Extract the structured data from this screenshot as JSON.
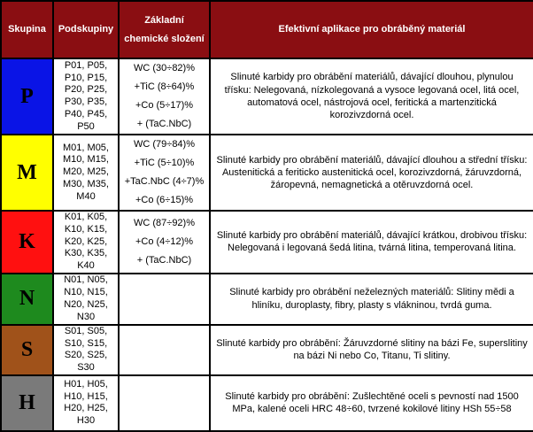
{
  "headers": {
    "group": "Skupina",
    "subgroup": "Podskupiny",
    "chem": "Základní chemické složení",
    "app": "Efektivní aplikace pro obráběný materiál"
  },
  "rows": [
    {
      "group": "P",
      "color": "#0a14e6",
      "text_color": "#000000",
      "subgroups": "P01, P05, P10, P15, P20, P25, P30, P35, P40, P45, P50",
      "chem": [
        "WC (30÷82)%",
        "+TiC (8÷64)%",
        "+Co (5÷17)%",
        "+ (TaC.NbC)"
      ],
      "app": "Slinuté karbidy pro obrábění materiálů, dávající dlouhou, plynulou třísku: Nelegovaná, nízkolegovaná a vysoce legovaná ocel, litá ocel, automatová ocel, nástrojová ocel, feritická a martenzitická korozivzdorná ocel."
    },
    {
      "group": "M",
      "color": "#ffff00",
      "text_color": "#000000",
      "subgroups": "M01, M05, M10, M15, M20, M25, M30, M35, M40",
      "chem": [
        "WC (79÷84)%",
        "+TiC (5÷10)%",
        "+TaC.NbC (4÷7)%",
        "+Co (6÷15)%"
      ],
      "app": "Slinuté karbidy pro obrábění materiálů, dávající dlouhou a střední třísku: Austenitická a feriticko austenitická ocel, korozivzdorná, žáruvzdorná, žáropevná, nemagnetická a otěruvzdorná ocel."
    },
    {
      "group": "K",
      "color": "#ff1010",
      "text_color": "#000000",
      "subgroups": "K01, K05, K10, K15, K20, K25, K30, K35, K40",
      "chem": [
        "WC (87÷92)%",
        "+Co (4÷12)%",
        "+ (TaC.NbC)"
      ],
      "app": "Slinuté karbidy pro obrábění materiálů, dávající krátkou, drobivou třísku: Nelegovaná i legovaná šedá litina, tvárná litina, temperovaná litina."
    },
    {
      "group": "N",
      "color": "#1e8a1e",
      "text_color": "#000000",
      "subgroups": "N01, N05, N10, N15, N20, N25, N30",
      "chem": [],
      "app": "Slinuté karbidy pro obrábění neželezných materiálů: Slitiny mědi a hliníku, duroplasty, fibry, plasty s vlákninou, tvrdá guma."
    },
    {
      "group": "S",
      "color": "#a0521a",
      "text_color": "#000000",
      "subgroups": "S01, S05, S10, S15, S20, S25, S30",
      "chem": [],
      "app": "Slinuté karbidy pro obrábění: Žáruvzdorné slitiny na bázi Fe, superslitiny na bázi Ni nebo Co, Titanu, Ti slitiny."
    },
    {
      "group": "H",
      "color": "#7a7a7a",
      "text_color": "#000000",
      "subgroups": "H01, H05, H10, H15, H20, H25, H30",
      "chem": [],
      "app": "Slinuté karbidy pro obrábění: Zušlechtěné oceli s pevností nad 1500 MPa, kalené oceli HRC 48÷60, tvrzené kokilové litiny HSh 55÷58"
    }
  ]
}
